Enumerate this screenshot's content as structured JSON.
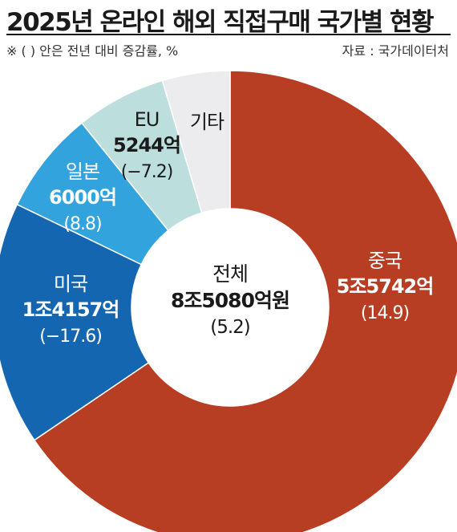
{
  "header": {
    "title": "2025년 온라인 해외 직접구매 국가별 현황",
    "note": "※ (  ) 안은 전년 대비 증감률, %",
    "source": "자료 : 국가데이터처"
  },
  "chart_data": {
    "type": "pie",
    "unit": "억원",
    "title": "2025년 온라인 해외 직접구매 국가별 현황",
    "total": {
      "name": "전체",
      "value_label": "8조5080억원",
      "value": 85080,
      "change_label": "(5.2)",
      "change": 5.2
    },
    "slices": [
      {
        "name": "중국",
        "value": 55742,
        "value_label": "5조5742억",
        "change_label": "(14.9)",
        "change": 14.9,
        "color": "#B83E23"
      },
      {
        "name": "미국",
        "value": 14157,
        "value_label": "1조4157억",
        "change_label": "(−17.6)",
        "change": -17.6,
        "color": "#1566B0"
      },
      {
        "name": "일본",
        "value": 6000,
        "value_label": "6000억",
        "change_label": "(8.8)",
        "change": 8.8,
        "color": "#33A3DE"
      },
      {
        "name": "EU",
        "value": 5244,
        "value_label": "5244억",
        "change_label": "(−7.2)",
        "change": -7.2,
        "color": "#BCDFDD"
      },
      {
        "name": "기타",
        "value": 3937,
        "value_label": "",
        "change_label": "",
        "color": "#ECECEE"
      }
    ]
  }
}
